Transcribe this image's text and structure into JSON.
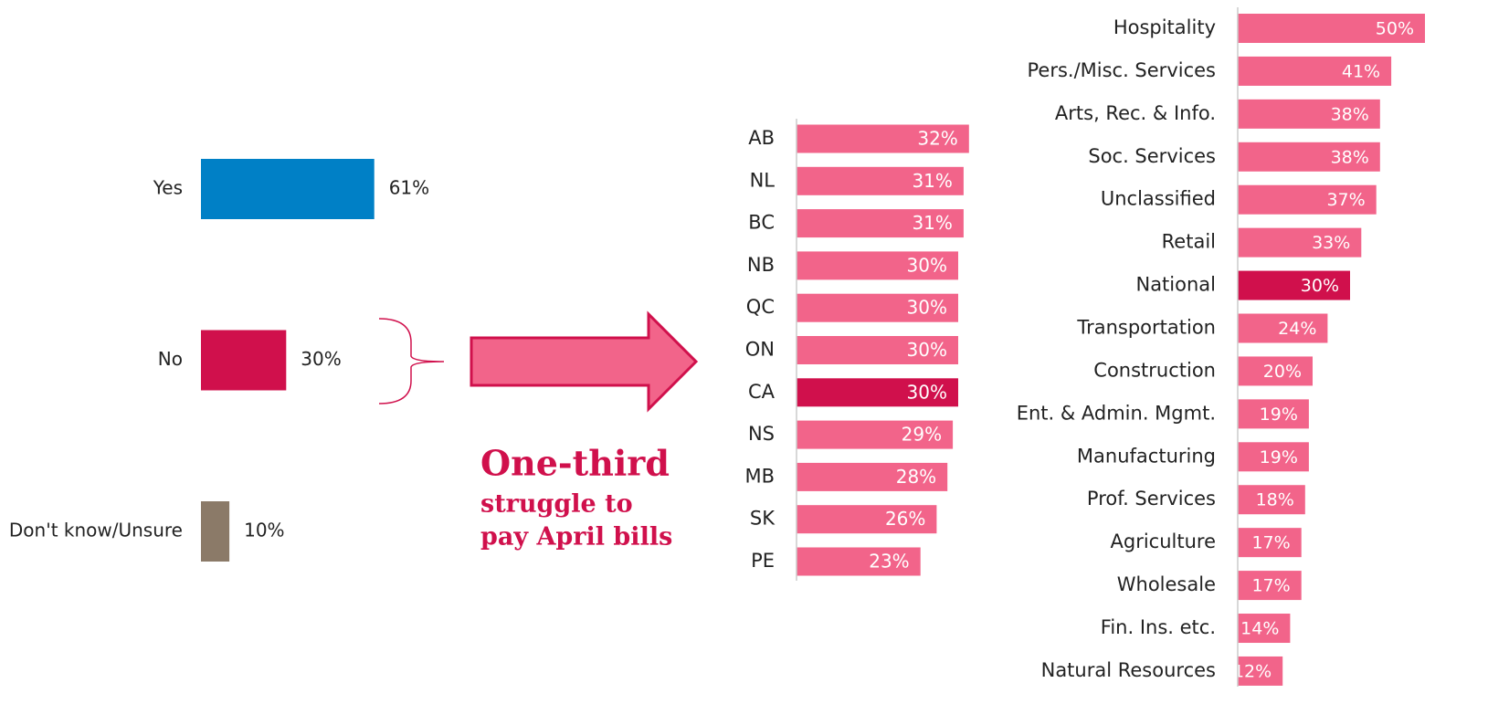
{
  "chart_data": [
    {
      "type": "hbar",
      "categories": [
        "Yes",
        "No",
        "Don't know/Unsure"
      ],
      "values": [
        61,
        30,
        10
      ],
      "value_labels": [
        "61%",
        "30%",
        "10%"
      ],
      "colors": [
        "#0080c6",
        "#d0104c",
        "#8b7a68"
      ],
      "xlim": [
        0,
        100
      ]
    },
    {
      "type": "hbar",
      "categories": [
        "AB",
        "NL",
        "BC",
        "NB",
        "QC",
        "ON",
        "CA",
        "NS",
        "MB",
        "SK",
        "PE"
      ],
      "values": [
        32,
        31,
        31,
        30,
        30,
        30,
        30,
        29,
        28,
        26,
        23
      ],
      "value_labels": [
        "32%",
        "31%",
        "31%",
        "30%",
        "30%",
        "30%",
        "30%",
        "29%",
        "28%",
        "26%",
        "23%"
      ],
      "colors": [
        "#f2648a",
        "#f2648a",
        "#f2648a",
        "#f2648a",
        "#f2648a",
        "#f2648a",
        "#d0104c",
        "#f2648a",
        "#f2648a",
        "#f2648a",
        "#f2648a"
      ],
      "xlim": [
        0,
        50
      ]
    },
    {
      "type": "hbar",
      "categories": [
        "Hospitality",
        "Pers./Misc. Services",
        "Arts, Rec. & Info.",
        "Soc. Services",
        "Unclassified",
        "Retail",
        "National",
        "Transportation",
        "Construction",
        "Ent. & Admin. Mgmt.",
        "Manufacturing",
        "Prof. Services",
        "Agriculture",
        "Wholesale",
        "Fin. Ins. etc.",
        "Natural Resources"
      ],
      "values": [
        50,
        41,
        38,
        38,
        37,
        33,
        30,
        24,
        20,
        19,
        19,
        18,
        17,
        17,
        14,
        12
      ],
      "value_labels": [
        "50%",
        "41%",
        "38%",
        "38%",
        "37%",
        "33%",
        "30%",
        "24%",
        "20%",
        "19%",
        "19%",
        "18%",
        "17%",
        "17%",
        "14%",
        "12%"
      ],
      "colors": [
        "#f2648a",
        "#f2648a",
        "#f2648a",
        "#f2648a",
        "#f2648a",
        "#f2648a",
        "#d0104c",
        "#f2648a",
        "#f2648a",
        "#f2648a",
        "#f2648a",
        "#f2648a",
        "#f2648a",
        "#f2648a",
        "#f2648a",
        "#f2648a"
      ],
      "xlim": [
        0,
        50
      ]
    }
  ],
  "callout": {
    "headline": "One-third",
    "lines": [
      "struggle to",
      "pay April bills"
    ]
  }
}
